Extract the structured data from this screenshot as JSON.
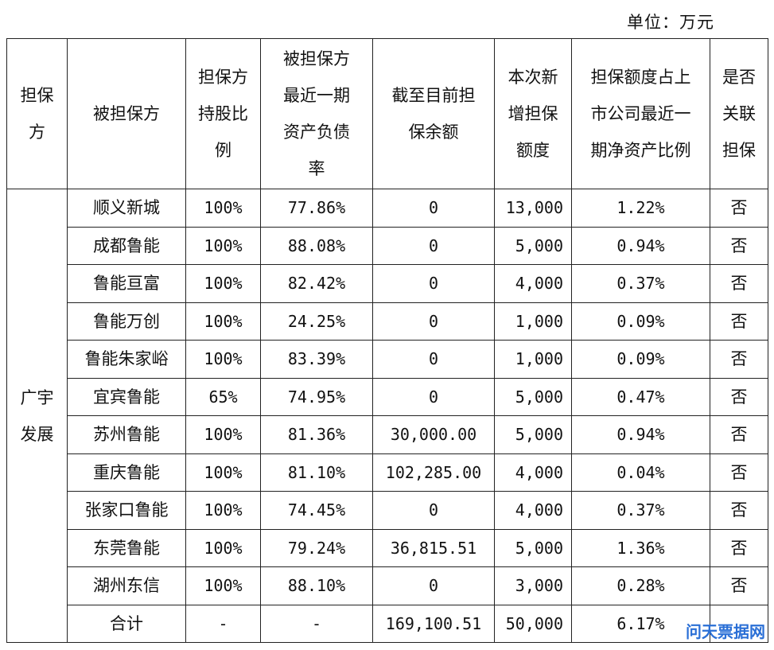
{
  "unit_label": "单位：万元",
  "headers": [
    [
      "担保",
      "方"
    ],
    [
      "被担保方"
    ],
    [
      "担保方",
      "持股比",
      "例"
    ],
    [
      "被担保方",
      "最近一期",
      "资产负债",
      "率"
    ],
    [
      "截至目前担",
      "保余额"
    ],
    [
      "本次新",
      "增担保",
      "额度"
    ],
    [
      "担保额度占上",
      "市公司最近一",
      "期净资产比例"
    ],
    [
      "是否",
      "关联",
      "担保"
    ]
  ],
  "guarantor": [
    "广宇",
    "发展"
  ],
  "rows": [
    {
      "name": "顺义新城",
      "holding": "100%",
      "debt_ratio": "77.86%",
      "balance": "0",
      "new_amount": "13,000",
      "ratio": "1.22%",
      "related": "否"
    },
    {
      "name": "成都鲁能",
      "holding": "100%",
      "debt_ratio": "88.08%",
      "balance": "0",
      "new_amount": "5,000",
      "ratio": "0.94%",
      "related": "否"
    },
    {
      "name": "鲁能亘富",
      "holding": "100%",
      "debt_ratio": "82.42%",
      "balance": "0",
      "new_amount": "4,000",
      "ratio": "0.37%",
      "related": "否"
    },
    {
      "name": "鲁能万创",
      "holding": "100%",
      "debt_ratio": "24.25%",
      "balance": "0",
      "new_amount": "1,000",
      "ratio": "0.09%",
      "related": "否"
    },
    {
      "name": "鲁能朱家峪",
      "holding": "100%",
      "debt_ratio": "83.39%",
      "balance": "0",
      "new_amount": "1,000",
      "ratio": "0.09%",
      "related": "否"
    },
    {
      "name": "宜宾鲁能",
      "holding": "65%",
      "debt_ratio": "74.95%",
      "balance": "0",
      "new_amount": "5,000",
      "ratio": "0.47%",
      "related": "否"
    },
    {
      "name": "苏州鲁能",
      "holding": "100%",
      "debt_ratio": "81.36%",
      "balance": "30,000.00",
      "new_amount": "5,000",
      "ratio": "0.94%",
      "related": "否"
    },
    {
      "name": "重庆鲁能",
      "holding": "100%",
      "debt_ratio": "81.10%",
      "balance": "102,285.00",
      "new_amount": "4,000",
      "ratio": "0.04%",
      "related": "否"
    },
    {
      "name": "张家口鲁能",
      "holding": "100%",
      "debt_ratio": "74.45%",
      "balance": "0",
      "new_amount": "4,000",
      "ratio": "0.37%",
      "related": "否"
    },
    {
      "name": "东莞鲁能",
      "holding": "100%",
      "debt_ratio": "79.24%",
      "balance": "36,815.51",
      "new_amount": "5,000",
      "ratio": "1.36%",
      "related": "否"
    },
    {
      "name": "湖州东信",
      "holding": "100%",
      "debt_ratio": "88.10%",
      "balance": "0",
      "new_amount": "3,000",
      "ratio": "0.28%",
      "related": "否"
    }
  ],
  "total": {
    "name": "合计",
    "holding": "-",
    "debt_ratio": "-",
    "balance": "169,100.51",
    "new_amount": "50,000",
    "ratio": "6.17%",
    "related": ""
  },
  "watermark": "问天票据网"
}
